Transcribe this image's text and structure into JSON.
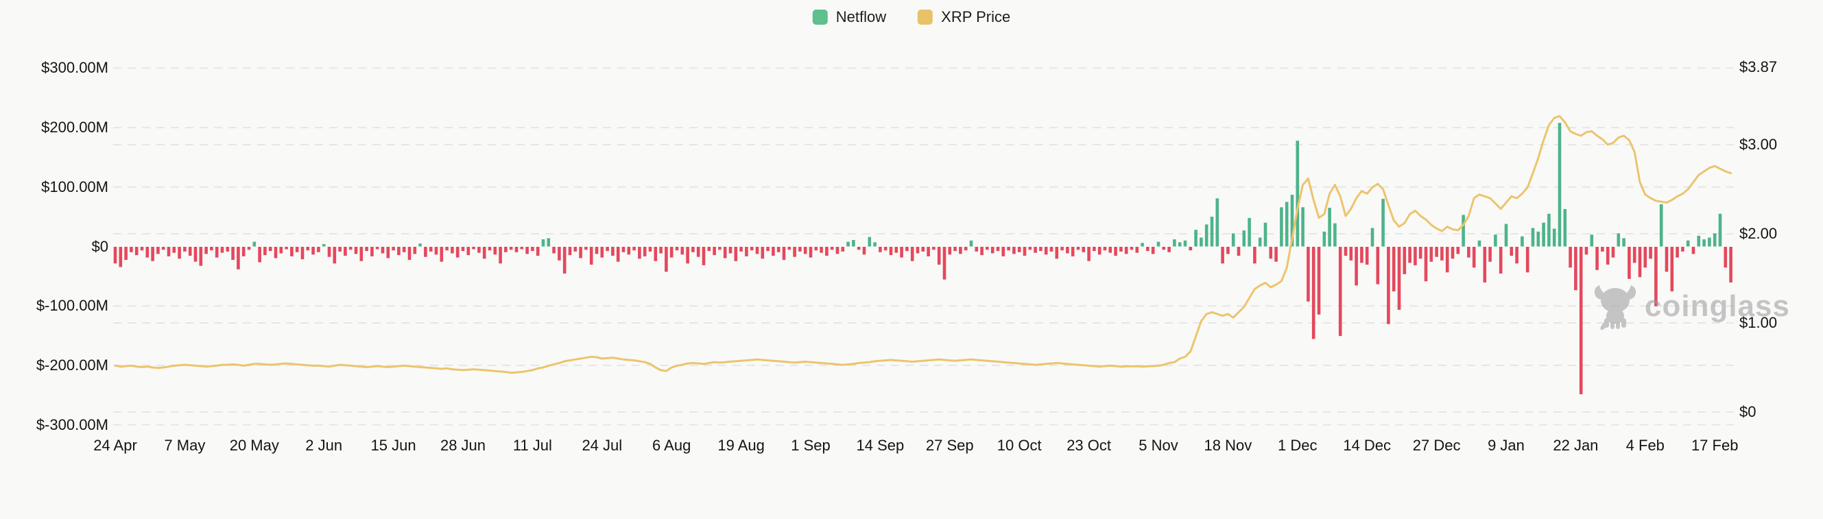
{
  "legend": {
    "netflow_label": "Netflow",
    "xrp_price_label": "XRP Price"
  },
  "watermark": {
    "text": "coinglass"
  },
  "colors": {
    "netflow_positive": "#4eb38a",
    "netflow_negative": "#e4485c",
    "price_line": "#ecc46c",
    "legend_netflow_swatch": "#5fbf8d",
    "legend_price_swatch": "#e8c169",
    "grid": "#e6e6e6",
    "axis_text": "#141414",
    "watermark_gray": "#9a9a9a",
    "background": "#f9f9f8"
  },
  "chart_data": {
    "type": "bar+line",
    "title": "",
    "interval": "daily",
    "start_date": "24 Apr",
    "end_date": "20 Feb",
    "left_axis": {
      "unit": "USD millions",
      "tick_labels": [
        "$300.00M",
        "$200.00M",
        "$100.00M",
        "$0",
        "$-100.00M",
        "$-200.00M",
        "$-300.00M"
      ],
      "tick_values": [
        300,
        200,
        100,
        0,
        -100,
        -200,
        -300
      ],
      "range": [
        -300,
        300
      ]
    },
    "right_axis": {
      "unit": "USD",
      "tick_labels": [
        "$3.87",
        "$3.00",
        "$2.00",
        "$1.00",
        "$0"
      ],
      "tick_values": [
        3.87,
        3.0,
        2.0,
        1.0,
        0
      ],
      "range": [
        0,
        3.87
      ]
    },
    "x_ticks": [
      {
        "label": "24 Apr",
        "day": 0
      },
      {
        "label": "7 May",
        "day": 13
      },
      {
        "label": "20 May",
        "day": 26
      },
      {
        "label": "2 Jun",
        "day": 39
      },
      {
        "label": "15 Jun",
        "day": 52
      },
      {
        "label": "28 Jun",
        "day": 65
      },
      {
        "label": "11 Jul",
        "day": 78
      },
      {
        "label": "24 Jul",
        "day": 91
      },
      {
        "label": "6 Aug",
        "day": 104
      },
      {
        "label": "19 Aug",
        "day": 117
      },
      {
        "label": "1 Sep",
        "day": 130
      },
      {
        "label": "14 Sep",
        "day": 143
      },
      {
        "label": "27 Sep",
        "day": 156
      },
      {
        "label": "10 Oct",
        "day": 169
      },
      {
        "label": "23 Oct",
        "day": 182
      },
      {
        "label": "5 Nov",
        "day": 195
      },
      {
        "label": "18 Nov",
        "day": 208
      },
      {
        "label": "1 Dec",
        "day": 221
      },
      {
        "label": "14 Dec",
        "day": 234
      },
      {
        "label": "27 Dec",
        "day": 247
      },
      {
        "label": "9 Jan",
        "day": 260
      },
      {
        "label": "22 Jan",
        "day": 273
      },
      {
        "label": "4 Feb",
        "day": 286
      },
      {
        "label": "17 Feb",
        "day": 299
      }
    ],
    "series": [
      {
        "name": "Netflow",
        "type": "bar",
        "axis": "left",
        "unit": "$M",
        "values": [
          -28,
          -34,
          -22,
          -9,
          -14,
          -6,
          -18,
          -24,
          -12,
          -5,
          -16,
          -10,
          -20,
          -8,
          -15,
          -25,
          -32,
          -12,
          -6,
          -18,
          -10,
          -8,
          -22,
          -38,
          -16,
          -5,
          8,
          -26,
          -14,
          -7,
          -19,
          -11,
          -4,
          -16,
          -9,
          -21,
          -6,
          -13,
          -9,
          4,
          -17,
          -28,
          -8,
          -15,
          -5,
          -12,
          -24,
          -7,
          -16,
          -4,
          -11,
          -19,
          -6,
          -14,
          -9,
          -22,
          -12,
          5,
          -17,
          -8,
          -13,
          -25,
          -6,
          -11,
          -18,
          -7,
          -14,
          -4,
          -10,
          -20,
          -6,
          -13,
          -28,
          -9,
          -5,
          -9,
          -4,
          -12,
          -7,
          -15,
          12,
          14,
          -11,
          -23,
          -45,
          -14,
          -8,
          -19,
          -5,
          -30,
          -12,
          -18,
          -7,
          -15,
          -25,
          -9,
          -13,
          -6,
          -20,
          -16,
          -8,
          -24,
          -11,
          -42,
          -18,
          -6,
          -13,
          -28,
          -9,
          -17,
          -31,
          -7,
          -14,
          -5,
          -19,
          -11,
          -24,
          -8,
          -16,
          -6,
          -12,
          -20,
          -7,
          -15,
          -9,
          -22,
          -5,
          -17,
          -8,
          -12,
          -18,
          -6,
          -10,
          -15,
          -5,
          -12,
          -8,
          8,
          11,
          -5,
          -13,
          16,
          7,
          -9,
          -6,
          -14,
          -10,
          -18,
          -7,
          -24,
          -11,
          -8,
          -16,
          -5,
          -30,
          -55,
          -13,
          -7,
          -12,
          -6,
          10,
          -8,
          -14,
          -5,
          -11,
          -7,
          -16,
          -6,
          -12,
          -9,
          -15,
          -5,
          -10,
          -7,
          -13,
          -8,
          -20,
          -6,
          -11,
          -16,
          -5,
          -9,
          -24,
          -7,
          -13,
          -6,
          -10,
          -15,
          -8,
          -12,
          -5,
          -10,
          6,
          -7,
          -12,
          8,
          -5,
          -9,
          12,
          7,
          10,
          -6,
          28,
          15,
          37,
          50,
          81,
          -28,
          -12,
          22,
          -15,
          27,
          48,
          -28,
          15,
          40,
          -20,
          -25,
          66,
          75,
          87,
          178,
          66,
          -92,
          -155,
          -114,
          25,
          65,
          39,
          -150,
          -15,
          -23,
          -65,
          -27,
          -30,
          31,
          -63,
          80,
          -130,
          -75,
          -106,
          -46,
          -27,
          -31,
          -20,
          -58,
          -25,
          -17,
          -23,
          -43,
          -20,
          -12,
          53,
          -18,
          -35,
          10,
          -60,
          -25,
          20,
          -45,
          38,
          -15,
          -28,
          17,
          -43,
          31,
          25,
          40,
          55,
          30,
          208,
          63,
          -35,
          -73,
          -248,
          -13,
          20,
          -39,
          -8,
          -30,
          -18,
          22,
          14,
          -54,
          -27,
          -51,
          -35,
          -20,
          -100,
          71,
          -42,
          -75,
          -18,
          -8,
          10,
          -12,
          18,
          12,
          15,
          22,
          55,
          -35,
          -60
        ]
      },
      {
        "name": "XRP Price",
        "type": "line",
        "axis": "right",
        "unit": "$",
        "values": [
          0.52,
          0.51,
          0.515,
          0.52,
          0.51,
          0.505,
          0.51,
          0.5,
          0.495,
          0.5,
          0.51,
          0.52,
          0.525,
          0.53,
          0.525,
          0.52,
          0.515,
          0.51,
          0.515,
          0.52,
          0.53,
          0.53,
          0.535,
          0.53,
          0.52,
          0.53,
          0.54,
          0.54,
          0.535,
          0.53,
          0.535,
          0.54,
          0.545,
          0.54,
          0.535,
          0.53,
          0.525,
          0.52,
          0.52,
          0.515,
          0.51,
          0.52,
          0.53,
          0.525,
          0.52,
          0.515,
          0.51,
          0.505,
          0.51,
          0.515,
          0.51,
          0.505,
          0.51,
          0.515,
          0.52,
          0.515,
          0.51,
          0.505,
          0.5,
          0.495,
          0.49,
          0.485,
          0.49,
          0.48,
          0.475,
          0.47,
          0.475,
          0.48,
          0.475,
          0.47,
          0.465,
          0.46,
          0.455,
          0.45,
          0.44,
          0.445,
          0.45,
          0.46,
          0.47,
          0.49,
          0.5,
          0.52,
          0.535,
          0.55,
          0.57,
          0.58,
          0.59,
          0.6,
          0.61,
          0.62,
          0.615,
          0.6,
          0.605,
          0.61,
          0.6,
          0.59,
          0.585,
          0.58,
          0.57,
          0.56,
          0.54,
          0.5,
          0.47,
          0.46,
          0.5,
          0.52,
          0.53,
          0.545,
          0.55,
          0.545,
          0.54,
          0.55,
          0.56,
          0.555,
          0.56,
          0.565,
          0.57,
          0.575,
          0.58,
          0.585,
          0.59,
          0.585,
          0.58,
          0.575,
          0.57,
          0.565,
          0.56,
          0.555,
          0.56,
          0.565,
          0.56,
          0.555,
          0.55,
          0.545,
          0.54,
          0.535,
          0.53,
          0.535,
          0.54,
          0.55,
          0.555,
          0.56,
          0.57,
          0.575,
          0.58,
          0.585,
          0.58,
          0.575,
          0.57,
          0.565,
          0.57,
          0.575,
          0.58,
          0.585,
          0.59,
          0.585,
          0.58,
          0.575,
          0.58,
          0.585,
          0.59,
          0.585,
          0.58,
          0.575,
          0.57,
          0.565,
          0.56,
          0.555,
          0.55,
          0.545,
          0.54,
          0.535,
          0.53,
          0.535,
          0.54,
          0.545,
          0.55,
          0.545,
          0.54,
          0.535,
          0.53,
          0.525,
          0.52,
          0.515,
          0.51,
          0.515,
          0.52,
          0.515,
          0.51,
          0.512,
          0.514,
          0.512,
          0.51,
          0.513,
          0.515,
          0.52,
          0.53,
          0.55,
          0.56,
          0.6,
          0.62,
          0.68,
          0.85,
          1.02,
          1.1,
          1.12,
          1.1,
          1.08,
          1.1,
          1.06,
          1.12,
          1.18,
          1.28,
          1.38,
          1.42,
          1.45,
          1.4,
          1.43,
          1.47,
          1.62,
          1.95,
          2.28,
          2.55,
          2.62,
          2.38,
          2.18,
          2.22,
          2.45,
          2.55,
          2.42,
          2.2,
          2.28,
          2.4,
          2.48,
          2.45,
          2.52,
          2.56,
          2.5,
          2.32,
          2.15,
          2.08,
          2.12,
          2.22,
          2.26,
          2.2,
          2.16,
          2.1,
          2.06,
          2.03,
          2.08,
          2.05,
          2.04,
          2.1,
          2.2,
          2.4,
          2.44,
          2.42,
          2.4,
          2.34,
          2.28,
          2.35,
          2.42,
          2.4,
          2.45,
          2.52,
          2.68,
          2.85,
          3.05,
          3.22,
          3.3,
          3.32,
          3.25,
          3.15,
          3.12,
          3.1,
          3.14,
          3.15,
          3.1,
          3.06,
          3.0,
          3.02,
          3.08,
          3.1,
          3.05,
          2.92,
          2.58,
          2.44,
          2.4,
          2.37,
          2.36,
          2.35,
          2.38,
          2.42,
          2.45,
          2.5,
          2.58,
          2.66,
          2.7,
          2.74,
          2.76,
          2.73,
          2.7,
          2.68
        ]
      }
    ],
    "grid": "dashed horizontal",
    "legend_position": "top-center"
  }
}
